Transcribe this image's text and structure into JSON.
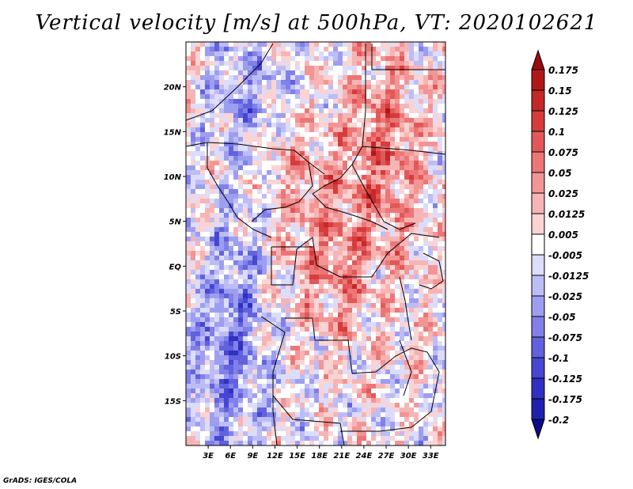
{
  "title": "Vertical velocity [m/s] at 500hPa, VT: 2020102621",
  "credit": "GrADS: IGES/COLA",
  "map": {
    "lon_range": [
      0,
      35
    ],
    "lat_range": [
      -20,
      25
    ],
    "lat_labels": [
      {
        "lat": 20,
        "text": "20N"
      },
      {
        "lat": 15,
        "text": "15N"
      },
      {
        "lat": 10,
        "text": "10N"
      },
      {
        "lat": 5,
        "text": "5N"
      },
      {
        "lat": 0,
        "text": "EQ"
      },
      {
        "lat": -5,
        "text": "5S"
      },
      {
        "lat": -10,
        "text": "10S"
      },
      {
        "lat": -15,
        "text": "15S"
      }
    ],
    "lon_labels": [
      {
        "lon": 3,
        "text": "3E"
      },
      {
        "lon": 6,
        "text": "6E"
      },
      {
        "lon": 9,
        "text": "9E"
      },
      {
        "lon": 12,
        "text": "12E"
      },
      {
        "lon": 15,
        "text": "15E"
      },
      {
        "lon": 18,
        "text": "18E"
      },
      {
        "lon": 21,
        "text": "21E"
      },
      {
        "lon": 24,
        "text": "24E"
      },
      {
        "lon": 27,
        "text": "27E"
      },
      {
        "lon": 30,
        "text": "30E"
      },
      {
        "lon": 33,
        "text": "33E"
      }
    ]
  },
  "colorbar": {
    "levels": [
      {
        "label": "0.175",
        "color": "#b01818"
      },
      {
        "label": "0.15",
        "color": "#c52828"
      },
      {
        "label": "0.125",
        "color": "#d63c3c"
      },
      {
        "label": "0.1",
        "color": "#e25858"
      },
      {
        "label": "0.075",
        "color": "#ec7676"
      },
      {
        "label": "0.05",
        "color": "#f29595"
      },
      {
        "label": "0.025",
        "color": "#f7b4b4"
      },
      {
        "label": "0.0125",
        "color": "#fbd3d3"
      },
      {
        "label": "0.005",
        "color": "#ffffff"
      },
      {
        "label": "-0.005",
        "color": "#dcdcfb"
      },
      {
        "label": "-0.0125",
        "color": "#bdbdf6"
      },
      {
        "label": "-0.025",
        "color": "#9e9ef0"
      },
      {
        "label": "-0.05",
        "color": "#8080e8"
      },
      {
        "label": "-0.075",
        "color": "#6262de"
      },
      {
        "label": "-0.1",
        "color": "#4646d2"
      },
      {
        "label": "-0.125",
        "color": "#3030c2"
      },
      {
        "label": "-0.175",
        "color": "#2020b0"
      },
      {
        "label": "-0.2",
        "color": "#14149e"
      }
    ],
    "top_color": "#9a0c0c",
    "bottom_color": "#0a0a8a"
  },
  "chart_data": {
    "type": "heatmap",
    "title": "Vertical velocity [m/s] at 500hPa, VT: 2020102621",
    "variable": "Vertical velocity",
    "units": "m/s",
    "level": "500hPa",
    "valid_time": "2020102621",
    "x_ticks": [
      "3E",
      "6E",
      "9E",
      "12E",
      "15E",
      "18E",
      "21E",
      "24E",
      "27E",
      "30E",
      "33E"
    ],
    "y_ticks": [
      "20N",
      "15N",
      "10N",
      "5N",
      "EQ",
      "5S",
      "10S",
      "15S"
    ]
  }
}
